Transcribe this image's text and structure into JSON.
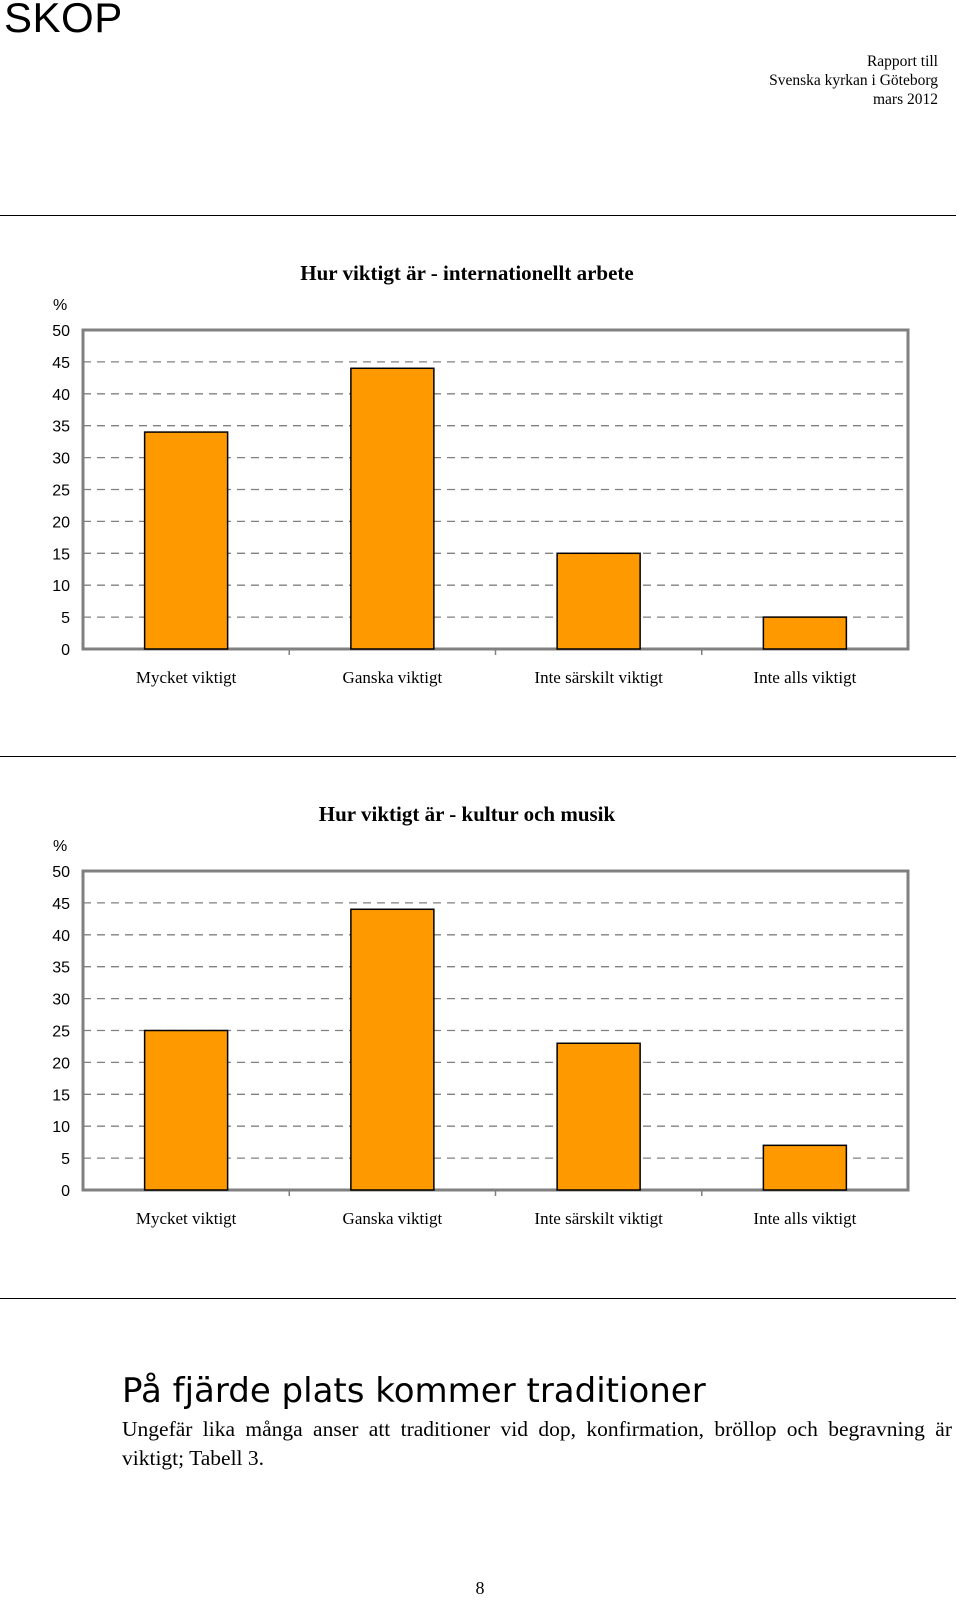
{
  "header": {
    "logo": "SKOP",
    "report_lines": [
      "Rapport till",
      "Svenska kyrkan i Göteborg",
      "mars 2012"
    ]
  },
  "chart_data": [
    {
      "type": "bar",
      "title": "Hur viktigt är - internationellt arbete",
      "ylabel": "%",
      "categories": [
        "Mycket viktigt",
        "Ganska viktigt",
        "Inte särskilt viktigt",
        "Inte alls viktigt"
      ],
      "values": [
        34,
        44,
        15,
        5
      ],
      "ylim": [
        0,
        50
      ],
      "yticks": [
        0,
        5,
        10,
        15,
        20,
        25,
        30,
        35,
        40,
        45,
        50
      ],
      "grid": "dashed horizontal",
      "bar_color": "#ff9900"
    },
    {
      "type": "bar",
      "title": "Hur viktigt är - kultur och musik",
      "ylabel": "%",
      "categories": [
        "Mycket viktigt",
        "Ganska viktigt",
        "Inte särskilt viktigt",
        "Inte alls viktigt"
      ],
      "values": [
        25,
        44,
        23,
        7
      ],
      "ylim": [
        0,
        50
      ],
      "yticks": [
        0,
        5,
        10,
        15,
        20,
        25,
        30,
        35,
        40,
        45,
        50
      ],
      "grid": "dashed horizontal",
      "bar_color": "#ff9900"
    }
  ],
  "section": {
    "heading": "På fjärde plats kommer traditioner",
    "body": "Ungefär lika många anser att traditioner vid dop, konfirmation, bröllop och begravning är viktigt; Tabell 3."
  },
  "footer": {
    "page_number": "8"
  }
}
